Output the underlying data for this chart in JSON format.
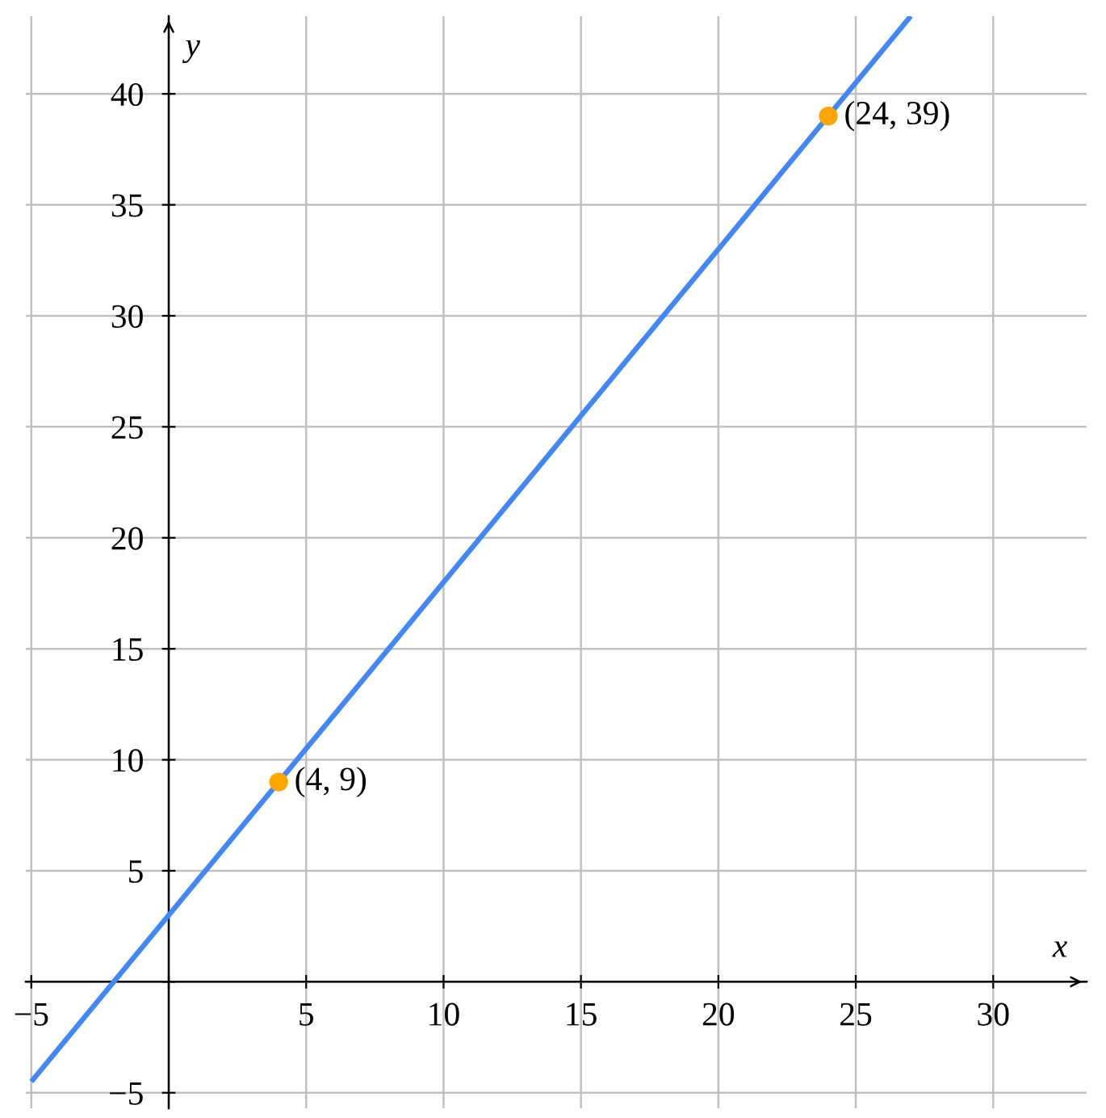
{
  "chart_data": {
    "type": "line",
    "xlabel": "x",
    "ylabel": "y",
    "xlim": [
      -5.2,
      33.4
    ],
    "ylim": [
      -5.7,
      43.5
    ],
    "xticks": [
      {
        "value": -5,
        "label": "−5"
      },
      {
        "value": 0,
        "label": null
      },
      5,
      10,
      15,
      20,
      25,
      30
    ],
    "yticks": [
      {
        "value": -5,
        "label": "−5"
      },
      {
        "value": 0,
        "label": null
      },
      5,
      10,
      15,
      20,
      25,
      30,
      35,
      40
    ],
    "grid": true,
    "series": [
      {
        "color": "#4287f5",
        "x": [
          -5,
          27
        ],
        "values": [
          -4.5,
          43.5
        ],
        "line_style": "solid"
      },
      {
        "type": "scatter",
        "color": "#ffa500",
        "x": [
          4,
          24
        ],
        "values": [
          9,
          39
        ],
        "marker": "circle"
      }
    ],
    "annotations": [
      {
        "text": "(4, 9)",
        "x": 4,
        "y": 9
      },
      {
        "text": "(24, 39)",
        "x": 24,
        "y": 39
      }
    ]
  }
}
